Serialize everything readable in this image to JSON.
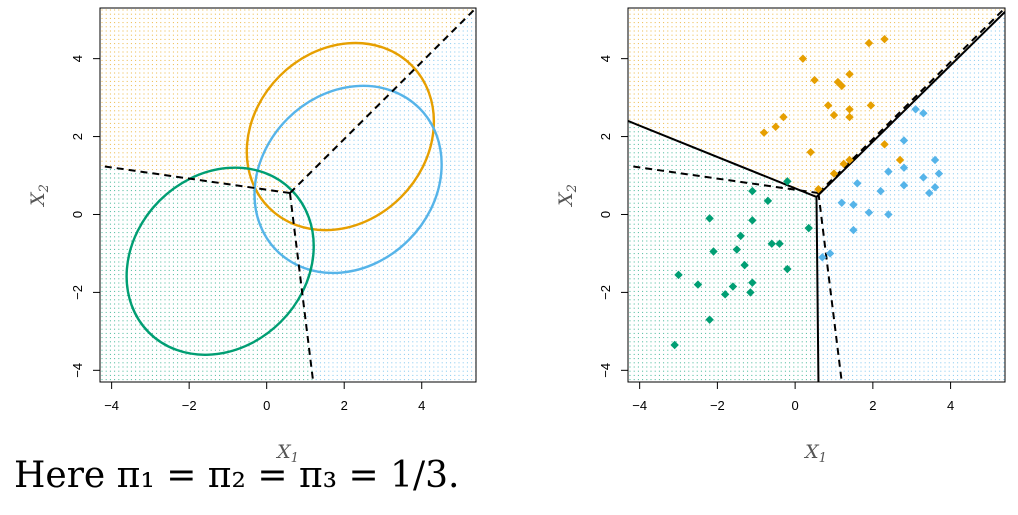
{
  "caption": "Here π₁ = π₂ = π₃ = 1/3.",
  "colors": {
    "class1": "#E69F00",
    "class2": "#56B4E9",
    "class3": "#009E73",
    "bayes_boundary": "#000000",
    "lda_boundary": "#000000"
  },
  "chart_data": [
    {
      "type": "scatter",
      "panel": "left",
      "xlabel": "X",
      "xlabel_sub": "1",
      "ylabel": "X",
      "ylabel_sub": "2",
      "xlim": [
        -4.3,
        5.4
      ],
      "ylim": [
        -4.3,
        5.3
      ],
      "xticks": [
        -4,
        -2,
        0,
        2,
        4
      ],
      "yticks": [
        -4,
        -2,
        0,
        2,
        4
      ],
      "xtick_labels": [
        "−4",
        "−2",
        "0",
        "2",
        "4"
      ],
      "ytick_labels": [
        "−4",
        "−2",
        "0",
        "2",
        "4"
      ],
      "background_regions": "dotted grid colored by Bayes-predicted class",
      "ellipses": [
        {
          "class": "class1",
          "center": [
            1.9,
            2.0
          ],
          "rx": 2.6,
          "ry": 2.2,
          "angle_deg": 45
        },
        {
          "class": "class2",
          "center": [
            2.1,
            0.9
          ],
          "rx": 2.6,
          "ry": 2.2,
          "angle_deg": 45
        },
        {
          "class": "class3",
          "center": [
            -1.2,
            -1.2
          ],
          "rx": 2.6,
          "ry": 2.2,
          "angle_deg": 45
        }
      ],
      "bayes_boundaries": [
        {
          "style": "dashed",
          "points": [
            [
              0.6,
              0.55
            ],
            [
              -4.3,
              1.25
            ]
          ]
        },
        {
          "style": "dashed",
          "points": [
            [
              0.6,
              0.55
            ],
            [
              5.4,
              5.3
            ]
          ]
        },
        {
          "style": "dashed",
          "points": [
            [
              0.6,
              0.55
            ],
            [
              1.2,
              -4.3
            ]
          ]
        }
      ]
    },
    {
      "type": "scatter",
      "panel": "right",
      "xlabel": "X",
      "xlabel_sub": "1",
      "ylabel": "X",
      "ylabel_sub": "2",
      "xlim": [
        -4.3,
        5.4
      ],
      "ylim": [
        -4.3,
        5.3
      ],
      "xticks": [
        -4,
        -2,
        0,
        2,
        4
      ],
      "yticks": [
        -4,
        -2,
        0,
        2,
        4
      ],
      "xtick_labels": [
        "−4",
        "−2",
        "0",
        "2",
        "4"
      ],
      "ytick_labels": [
        "−4",
        "−2",
        "0",
        "2",
        "4"
      ],
      "background_regions": "dotted grid colored by LDA-predicted class",
      "series": [
        {
          "class": "class1",
          "marker": "diamond",
          "points": [
            [
              2.3,
              4.5
            ],
            [
              1.9,
              4.4
            ],
            [
              0.2,
              4.0
            ],
            [
              1.4,
              3.6
            ],
            [
              1.1,
              3.4
            ],
            [
              0.5,
              3.45
            ],
            [
              1.2,
              3.3
            ],
            [
              0.85,
              2.8
            ],
            [
              1.95,
              2.8
            ],
            [
              1.4,
              2.7
            ],
            [
              -0.3,
              2.5
            ],
            [
              1.0,
              2.55
            ],
            [
              1.4,
              2.5
            ],
            [
              -0.5,
              2.25
            ],
            [
              -0.8,
              2.1
            ],
            [
              2.3,
              1.8
            ],
            [
              0.4,
              1.6
            ],
            [
              1.4,
              1.4
            ],
            [
              2.7,
              1.4
            ],
            [
              1.25,
              1.3
            ],
            [
              1.0,
              1.05
            ],
            [
              0.6,
              0.65
            ]
          ]
        },
        {
          "class": "class2",
          "marker": "diamond",
          "points": [
            [
              3.1,
              2.7
            ],
            [
              3.3,
              2.6
            ],
            [
              2.8,
              1.9
            ],
            [
              3.6,
              1.4
            ],
            [
              2.4,
              1.1
            ],
            [
              2.8,
              1.2
            ],
            [
              3.3,
              0.95
            ],
            [
              3.7,
              1.05
            ],
            [
              1.6,
              0.8
            ],
            [
              2.8,
              0.75
            ],
            [
              3.6,
              0.7
            ],
            [
              3.45,
              0.55
            ],
            [
              2.2,
              0.6
            ],
            [
              1.2,
              0.3
            ],
            [
              1.5,
              0.25
            ],
            [
              1.9,
              0.05
            ],
            [
              2.4,
              0.0
            ],
            [
              1.5,
              -0.4
            ],
            [
              0.9,
              -1.0
            ],
            [
              0.7,
              -1.1
            ]
          ]
        },
        {
          "class": "class3",
          "marker": "diamond",
          "points": [
            [
              -0.2,
              0.85
            ],
            [
              -1.1,
              0.6
            ],
            [
              -0.7,
              0.35
            ],
            [
              -2.2,
              -0.1
            ],
            [
              -1.1,
              -0.15
            ],
            [
              0.35,
              -0.35
            ],
            [
              -1.4,
              -0.55
            ],
            [
              -0.6,
              -0.75
            ],
            [
              -0.4,
              -0.75
            ],
            [
              -1.5,
              -0.9
            ],
            [
              -2.1,
              -0.95
            ],
            [
              -0.2,
              -1.4
            ],
            [
              -1.3,
              -1.3
            ],
            [
              -3.0,
              -1.55
            ],
            [
              -1.1,
              -1.75
            ],
            [
              -2.5,
              -1.8
            ],
            [
              -1.6,
              -1.85
            ],
            [
              -1.8,
              -2.05
            ],
            [
              -1.15,
              -2.0
            ],
            [
              -2.2,
              -2.7
            ],
            [
              -3.1,
              -3.35
            ]
          ]
        }
      ],
      "bayes_boundaries": [
        {
          "style": "dashed",
          "points": [
            [
              0.6,
              0.55
            ],
            [
              -4.3,
              1.25
            ]
          ]
        },
        {
          "style": "dashed",
          "points": [
            [
              0.6,
              0.55
            ],
            [
              5.4,
              5.3
            ]
          ]
        },
        {
          "style": "dashed",
          "points": [
            [
              0.6,
              0.55
            ],
            [
              1.2,
              -4.3
            ]
          ]
        }
      ],
      "lda_boundaries": [
        {
          "style": "solid",
          "points": [
            [
              0.55,
              0.45
            ],
            [
              -4.3,
              2.4
            ]
          ]
        },
        {
          "style": "solid",
          "points": [
            [
              0.55,
              0.45
            ],
            [
              5.4,
              5.2
            ]
          ]
        },
        {
          "style": "solid",
          "points": [
            [
              0.55,
              0.45
            ],
            [
              0.6,
              -4.3
            ]
          ]
        }
      ]
    }
  ]
}
